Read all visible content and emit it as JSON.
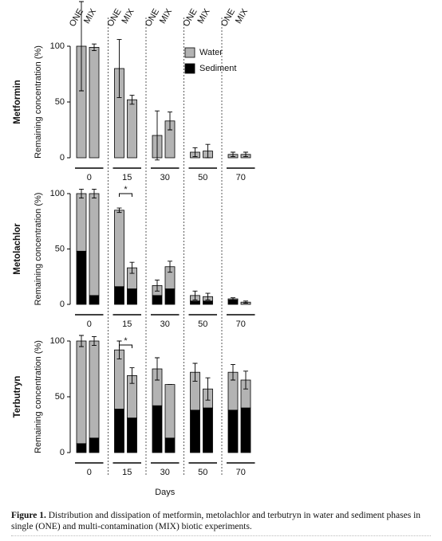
{
  "chart_data": [
    {
      "type": "bar",
      "stacked": true,
      "title": "Metformin",
      "ylabel": "Remaining concentration (%)",
      "groups": [
        "ONE",
        "MIX"
      ],
      "categories": [
        "0",
        "15",
        "30",
        "50",
        "70"
      ],
      "ylim": [
        0,
        100
      ],
      "yticks": [
        0,
        50,
        100
      ],
      "series": [
        {
          "name": "Water",
          "color": "#b3b3b3",
          "values": [
            [
              100,
              99
            ],
            [
              80,
              52
            ],
            [
              20,
              33
            ],
            [
              5,
              6
            ],
            [
              3,
              3
            ]
          ]
        },
        {
          "name": "Sediment",
          "color": "#000000",
          "values": [
            [
              0,
              0
            ],
            [
              0,
              0
            ],
            [
              0,
              0
            ],
            [
              0,
              0
            ],
            [
              0,
              0
            ]
          ]
        }
      ],
      "errors": [
        [
          40,
          3
        ],
        [
          26,
          4
        ],
        [
          22,
          8
        ],
        [
          4,
          6
        ],
        [
          2,
          2
        ]
      ]
    },
    {
      "type": "bar",
      "stacked": true,
      "title": "Metolachlor",
      "ylabel": "Remaining concentration (%)",
      "categories": [
        "0",
        "15",
        "30",
        "50",
        "70"
      ],
      "ylim": [
        0,
        100
      ],
      "yticks": [
        0,
        50,
        100
      ],
      "series": [
        {
          "color": "#b3b3b3",
          "values": [
            [
              52,
              92
            ],
            [
              69,
              19
            ],
            [
              9,
              20
            ],
            [
              5,
              4
            ],
            [
              1,
              2
            ]
          ]
        },
        {
          "color": "#000000",
          "values": [
            [
              48,
              8
            ],
            [
              16,
              14
            ],
            [
              8,
              14
            ],
            [
              3,
              3
            ],
            [
              4,
              0
            ]
          ]
        }
      ],
      "errors": [
        [
          4,
          4
        ],
        [
          2,
          5
        ],
        [
          5,
          5
        ],
        [
          4,
          3
        ],
        [
          1,
          1
        ]
      ],
      "annotation": "*"
    },
    {
      "type": "bar",
      "stacked": true,
      "title": "Terbutryn",
      "ylabel": "Remaining concentration (%)",
      "categories": [
        "0",
        "15",
        "30",
        "50",
        "70"
      ],
      "ylim": [
        0,
        100
      ],
      "yticks": [
        0,
        50,
        100
      ],
      "series": [
        {
          "color": "#b3b3b3",
          "values": [
            [
              92,
              87
            ],
            [
              53,
              38
            ],
            [
              33,
              48
            ],
            [
              34,
              17
            ],
            [
              34,
              25
            ]
          ]
        },
        {
          "color": "#000000",
          "values": [
            [
              8,
              13
            ],
            [
              39,
              31
            ],
            [
              42,
              13
            ],
            [
              38,
              40
            ],
            [
              38,
              40
            ]
          ]
        }
      ],
      "errors": [
        [
          5,
          4
        ],
        [
          8,
          7
        ],
        [
          10,
          0
        ],
        [
          8,
          10
        ],
        [
          7,
          8
        ]
      ],
      "annotation": "*",
      "xlabel": "Days"
    }
  ],
  "caption": {
    "label": "Figure 1.",
    "text": "Distribution and dissipation of metformin, metolachlor and terbutryn in water and sediment phases in single (ONE) and multi-contamination (MIX) biotic experiments."
  }
}
